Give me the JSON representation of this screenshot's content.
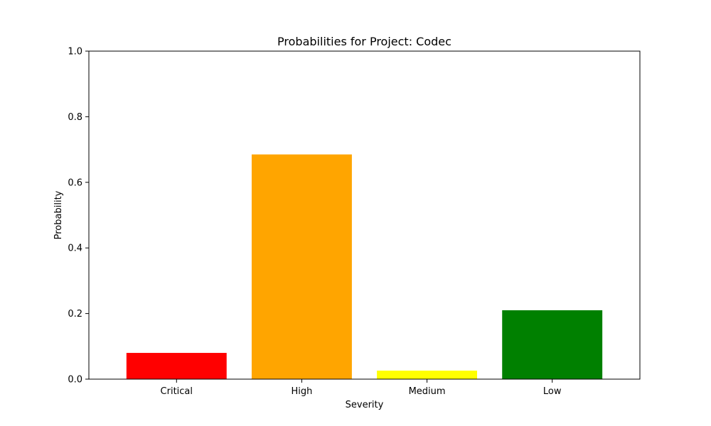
{
  "chart_data": {
    "type": "bar",
    "title": "Probabilities for Project: Codec",
    "xlabel": "Severity",
    "ylabel": "Probability",
    "categories": [
      "Critical",
      "High",
      "Medium",
      "Low"
    ],
    "values": [
      0.08,
      0.685,
      0.026,
      0.21
    ],
    "colors": [
      "#ff0000",
      "#ffa500",
      "#ffff00",
      "#008000"
    ],
    "ylim": [
      0,
      1.0
    ],
    "yticks": [
      "0.0",
      "0.2",
      "0.4",
      "0.6",
      "0.8",
      "1.0"
    ],
    "grid": false,
    "legend": "none"
  }
}
